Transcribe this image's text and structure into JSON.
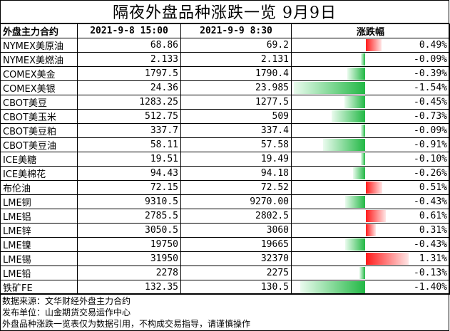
{
  "title": "隔夜外盘品种涨跌一览 9月9日",
  "headers": {
    "name": "外盘主力合约",
    "date1": "2021-9-8 15:00",
    "date2": "2021-9-9 8:30",
    "change": "涨跌幅"
  },
  "colors": {
    "up": "#ff1a1a",
    "down": "#22b845"
  },
  "rows": [
    {
      "name": "NYMEX美原油",
      "p1": "68.86",
      "p2": "69.2",
      "chg": "0.49%",
      "value": 0.49
    },
    {
      "name": "NYMEX美燃油",
      "p1": "2.133",
      "p2": "2.131",
      "chg": "-0.09%",
      "value": -0.09
    },
    {
      "name": "COMEX美金",
      "p1": "1797.5",
      "p2": "1790.4",
      "chg": "-0.39%",
      "value": -0.39
    },
    {
      "name": "COMEX美银",
      "p1": "24.36",
      "p2": "23.985",
      "chg": "-1.54%",
      "value": -1.54
    },
    {
      "name": "CBOT美豆",
      "p1": "1283.25",
      "p2": "1277.5",
      "chg": "-0.45%",
      "value": -0.45
    },
    {
      "name": "CBOT美玉米",
      "p1": "512.75",
      "p2": "509",
      "chg": "-0.73%",
      "value": -0.73
    },
    {
      "name": "CBOT美豆粕",
      "p1": "337.7",
      "p2": "337.4",
      "chg": "-0.09%",
      "value": -0.09
    },
    {
      "name": "CBOT美豆油",
      "p1": "58.11",
      "p2": "57.58",
      "chg": "-0.91%",
      "value": -0.91
    },
    {
      "name": "ICE美糖",
      "p1": "19.51",
      "p2": "19.49",
      "chg": "-0.10%",
      "value": -0.1
    },
    {
      "name": "ICE美棉花",
      "p1": "94.43",
      "p2": "94.18",
      "chg": "-0.26%",
      "value": -0.26
    },
    {
      "name": "布伦油",
      "p1": "72.15",
      "p2": "72.52",
      "chg": "0.51%",
      "value": 0.51
    },
    {
      "name": "LME铜",
      "p1": "9310.5",
      "p2": "9270.00",
      "chg": "-0.43%",
      "value": -0.43
    },
    {
      "name": "LME铝",
      "p1": "2785.5",
      "p2": "2802.5",
      "chg": "0.61%",
      "value": 0.61
    },
    {
      "name": "LME锌",
      "p1": "3050.5",
      "p2": "3060",
      "chg": "0.31%",
      "value": 0.31
    },
    {
      "name": "LME镍",
      "p1": "19750",
      "p2": "19665",
      "chg": "-0.43%",
      "value": -0.43
    },
    {
      "name": "LME锡",
      "p1": "31950",
      "p2": "32370",
      "chg": "1.31%",
      "value": 1.31
    },
    {
      "name": "LME铅",
      "p1": "2278",
      "p2": "2275",
      "chg": "-0.13%",
      "value": -0.13
    },
    {
      "name": "铁矿FE",
      "p1": "132.35",
      "p2": "130.5",
      "chg": "-1.40%",
      "value": -1.4
    }
  ],
  "footer": [
    "数据来源：文华财经外盘主力合约",
    "发布单位：山金期货交易运作中心",
    "外盘品种涨跌一览表仅为数据引用，不构成交易指导，请谨慎操作"
  ]
}
